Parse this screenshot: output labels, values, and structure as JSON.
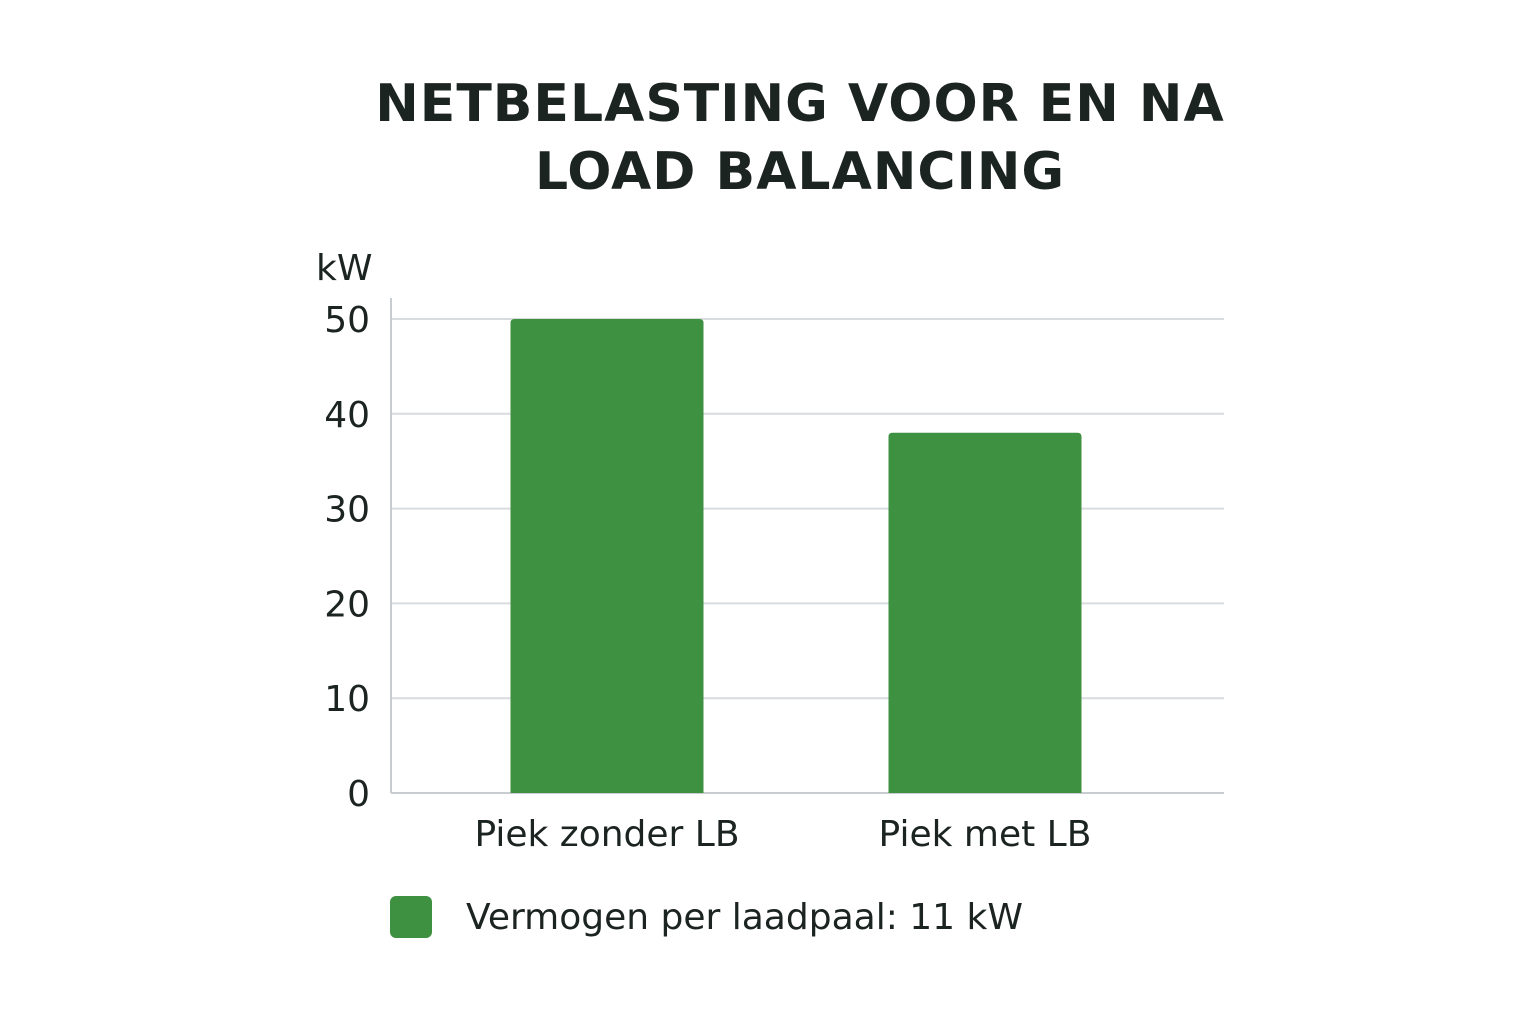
{
  "chart_data": {
    "type": "bar",
    "title_lines": [
      "NETBELASTING VOOR EN NA",
      "LOAD BALANCING"
    ],
    "ylabel": "kW",
    "xlabel": "",
    "categories": [
      "Piek zonder LB",
      "Piek met LB"
    ],
    "values": [
      50,
      38
    ],
    "ylim": [
      0,
      50
    ],
    "yticks": [
      0,
      10,
      20,
      30,
      40,
      50
    ],
    "grid": true,
    "legend": {
      "placement": "bottom-left",
      "entries": [
        {
          "label": "Vermogen per laadpaal: 11 kW",
          "color": "#3f9142"
        }
      ]
    },
    "colors": {
      "bar": "#3f9142",
      "grid": "#d9dcdf",
      "axis": "#c9cdd1"
    }
  }
}
